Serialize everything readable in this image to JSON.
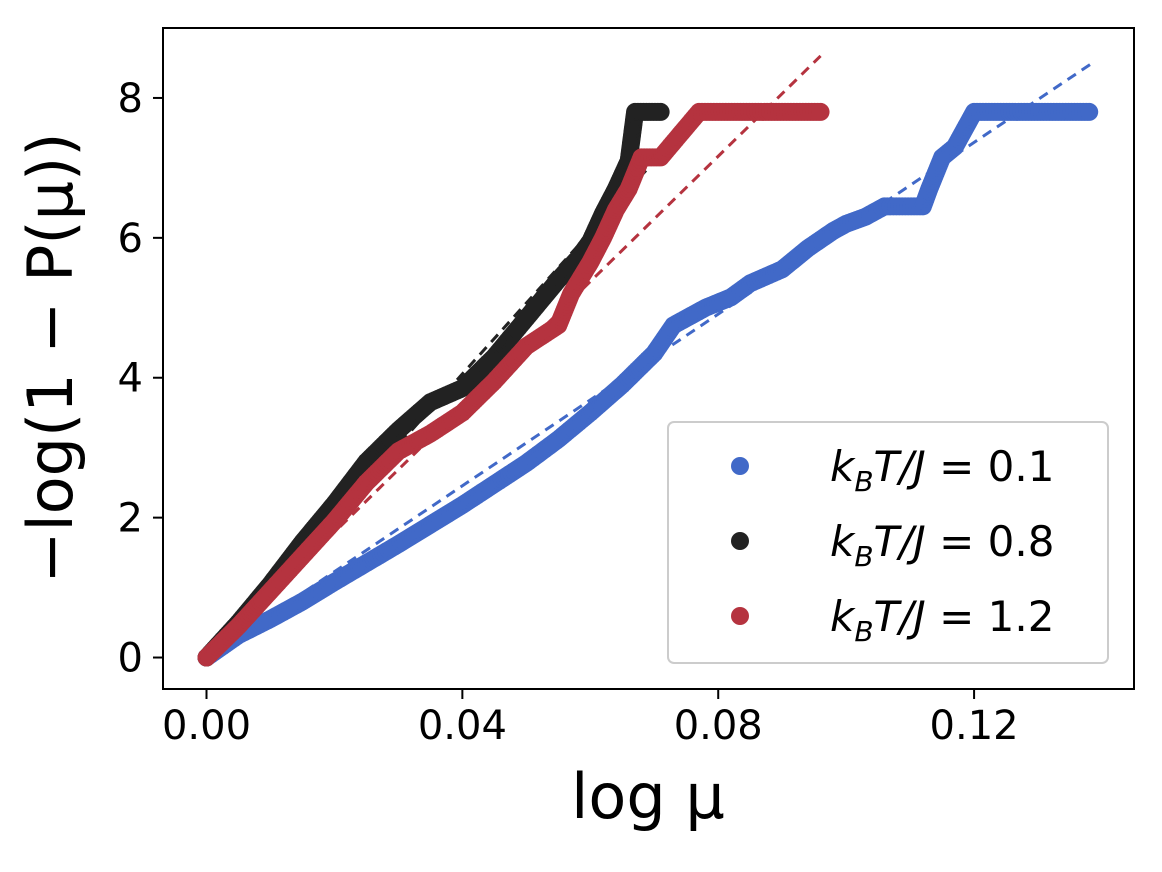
{
  "chart_data": {
    "type": "scatter",
    "title": "",
    "xlabel": "log μ",
    "ylabel": "−log(1 − P(μ))",
    "xlim": [
      -0.0068,
      0.145
    ],
    "ylim": [
      -0.45,
      9.0
    ],
    "xticks": [
      0.0,
      0.04,
      0.08,
      0.12
    ],
    "xtick_labels": [
      "0.00",
      "0.04",
      "0.08",
      "0.12"
    ],
    "yticks": [
      0,
      2,
      4,
      6,
      8
    ],
    "ytick_labels": [
      "0",
      "2",
      "4",
      "6",
      "8"
    ],
    "grid": false,
    "legend_position": "lower-right",
    "series": [
      {
        "name": "k_B T/J = 0.1",
        "legend_label": "kBT/J = 0.1",
        "color": "#4169c8",
        "points": [
          [
            0.0,
            0.0
          ],
          [
            0.005,
            0.32
          ],
          [
            0.01,
            0.55
          ],
          [
            0.015,
            0.8
          ],
          [
            0.02,
            1.08
          ],
          [
            0.025,
            1.35
          ],
          [
            0.03,
            1.62
          ],
          [
            0.035,
            1.9
          ],
          [
            0.04,
            2.18
          ],
          [
            0.045,
            2.48
          ],
          [
            0.05,
            2.78
          ],
          [
            0.055,
            3.12
          ],
          [
            0.06,
            3.5
          ],
          [
            0.065,
            3.9
          ],
          [
            0.07,
            4.35
          ],
          [
            0.073,
            4.75
          ],
          [
            0.078,
            5.0
          ],
          [
            0.082,
            5.15
          ],
          [
            0.085,
            5.35
          ],
          [
            0.09,
            5.55
          ],
          [
            0.094,
            5.85
          ],
          [
            0.098,
            6.1
          ],
          [
            0.1,
            6.2
          ],
          [
            0.103,
            6.3
          ],
          [
            0.106,
            6.45
          ],
          [
            0.112,
            6.45
          ],
          [
            0.113,
            6.7
          ],
          [
            0.115,
            7.15
          ],
          [
            0.117,
            7.3
          ],
          [
            0.12,
            7.8
          ],
          [
            0.138,
            7.8
          ]
        ],
        "fit_line": [
          [
            0.0,
            0.0
          ],
          [
            0.1385,
            8.5
          ]
        ]
      },
      {
        "name": "k_B T/J = 0.8",
        "legend_label": "kBT/J = 0.8",
        "color": "#222222",
        "points": [
          [
            0.0,
            0.0
          ],
          [
            0.005,
            0.5
          ],
          [
            0.01,
            1.05
          ],
          [
            0.015,
            1.65
          ],
          [
            0.02,
            2.2
          ],
          [
            0.025,
            2.8
          ],
          [
            0.03,
            3.25
          ],
          [
            0.035,
            3.65
          ],
          [
            0.04,
            3.85
          ],
          [
            0.045,
            4.3
          ],
          [
            0.05,
            4.85
          ],
          [
            0.055,
            5.4
          ],
          [
            0.058,
            5.7
          ],
          [
            0.06,
            5.95
          ],
          [
            0.062,
            6.35
          ],
          [
            0.064,
            6.7
          ],
          [
            0.066,
            7.1
          ],
          [
            0.067,
            7.8
          ],
          [
            0.071,
            7.8
          ]
        ],
        "fit_line": [
          [
            0.0,
            0.0
          ],
          [
            0.074,
            7.5
          ]
        ]
      },
      {
        "name": "k_B T/J = 1.2",
        "legend_label": "kBT/J = 1.2",
        "color": "#b5333f",
        "points": [
          [
            0.0,
            0.0
          ],
          [
            0.005,
            0.45
          ],
          [
            0.01,
            0.95
          ],
          [
            0.015,
            1.45
          ],
          [
            0.02,
            1.95
          ],
          [
            0.025,
            2.5
          ],
          [
            0.03,
            2.95
          ],
          [
            0.035,
            3.2
          ],
          [
            0.04,
            3.5
          ],
          [
            0.045,
            3.95
          ],
          [
            0.05,
            4.45
          ],
          [
            0.055,
            4.75
          ],
          [
            0.057,
            5.2
          ],
          [
            0.06,
            5.65
          ],
          [
            0.062,
            6.0
          ],
          [
            0.064,
            6.4
          ],
          [
            0.066,
            6.7
          ],
          [
            0.068,
            7.15
          ],
          [
            0.071,
            7.15
          ],
          [
            0.077,
            7.8
          ],
          [
            0.096,
            7.8
          ]
        ],
        "fit_line": [
          [
            0.0,
            0.0
          ],
          [
            0.096,
            8.6
          ]
        ]
      }
    ]
  },
  "legend": {
    "entries": [
      {
        "prefix": "k",
        "sub": "B",
        "mid": "T/J",
        "value": " = 0.1"
      },
      {
        "prefix": "k",
        "sub": "B",
        "mid": "T/J",
        "value": " = 0.8"
      },
      {
        "prefix": "k",
        "sub": "B",
        "mid": "T/J",
        "value": " = 1.2"
      }
    ]
  }
}
